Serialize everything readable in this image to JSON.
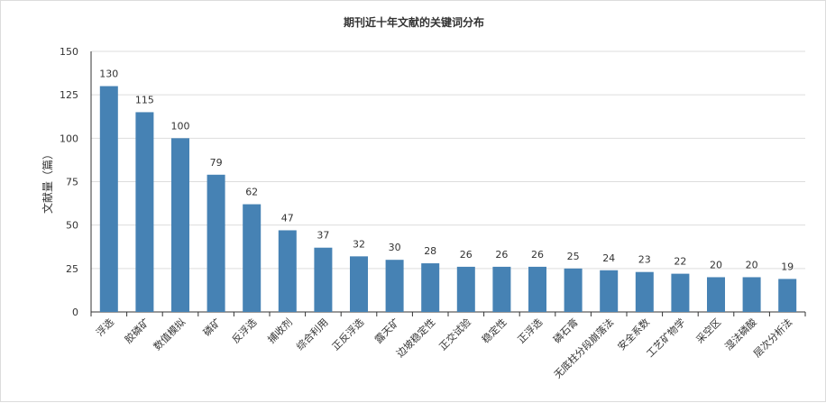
{
  "chart_data": {
    "type": "bar",
    "title": "期刊近十年文献的关键词分布",
    "xlabel": "",
    "ylabel": "文献量（篇）",
    "ylim": [
      0,
      150
    ],
    "yticks": [
      0,
      25,
      50,
      75,
      100,
      125,
      150
    ],
    "grid": true,
    "bar_color": "#4682b4",
    "categories": [
      "浮选",
      "胶磷矿",
      "数值模拟",
      "磷矿",
      "反浮选",
      "捕收剂",
      "综合利用",
      "正反浮选",
      "露天矿",
      "边坡稳定性",
      "正交试验",
      "稳定性",
      "正浮选",
      "磷石膏",
      "无底柱分段崩落法",
      "安全系数",
      "工艺矿物学",
      "采空区",
      "湿法磷酸",
      "层次分析法"
    ],
    "values": [
      130,
      115,
      100,
      79,
      62,
      47,
      37,
      32,
      30,
      28,
      26,
      26,
      26,
      25,
      24,
      23,
      22,
      20,
      20,
      19
    ]
  }
}
